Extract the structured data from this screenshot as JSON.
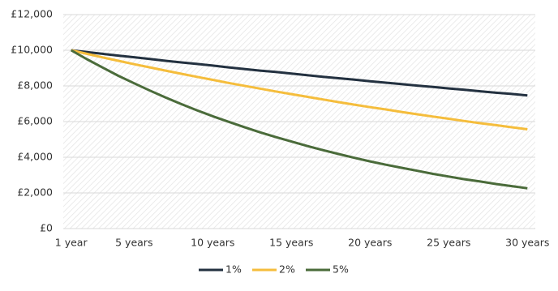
{
  "chart_data": {
    "type": "line",
    "categories": [
      "1 year",
      null,
      null,
      null,
      "5 years",
      null,
      null,
      null,
      null,
      "10 years",
      null,
      null,
      null,
      null,
      "15 years",
      null,
      null,
      null,
      null,
      "20 years",
      null,
      null,
      null,
      null,
      "25 years",
      null,
      null,
      null,
      null,
      "30 years"
    ],
    "series": [
      {
        "name": "1%",
        "color": "#233140",
        "values": [
          10000,
          9900,
          9800,
          9700,
          9610,
          9510,
          9410,
          9320,
          9230,
          9140,
          9040,
          8950,
          8860,
          8780,
          8690,
          8600,
          8510,
          8430,
          8350,
          8260,
          8180,
          8100,
          8020,
          7940,
          7860,
          7780,
          7700,
          7620,
          7550,
          7470
        ]
      },
      {
        "name": "2%",
        "color": "#f5bd3c",
        "values": [
          10000,
          9800,
          9600,
          9410,
          9220,
          9040,
          8860,
          8680,
          8510,
          8340,
          8170,
          8010,
          7850,
          7690,
          7540,
          7390,
          7240,
          7090,
          6950,
          6810,
          6680,
          6540,
          6410,
          6280,
          6160,
          6030,
          5910,
          5800,
          5680,
          5570
        ]
      },
      {
        "name": "5%",
        "color": "#4a6b3a",
        "values": [
          10000,
          9500,
          9030,
          8570,
          8150,
          7740,
          7350,
          6980,
          6630,
          6300,
          5990,
          5690,
          5400,
          5130,
          4880,
          4630,
          4400,
          4180,
          3970,
          3770,
          3580,
          3410,
          3240,
          3070,
          2920,
          2770,
          2640,
          2500,
          2380,
          2260
        ]
      }
    ],
    "ylim": [
      0,
      12000
    ],
    "yticks": [
      {
        "value": 0,
        "label": "£0"
      },
      {
        "value": 2000,
        "label": "£2,000"
      },
      {
        "value": 4000,
        "label": "£4,000"
      },
      {
        "value": 6000,
        "label": "£6,000"
      },
      {
        "value": 8000,
        "label": "£8,000"
      },
      {
        "value": 10000,
        "label": "£10,000"
      },
      {
        "value": 12000,
        "label": "£12,000"
      }
    ],
    "grid": true,
    "legend": "bottom"
  }
}
